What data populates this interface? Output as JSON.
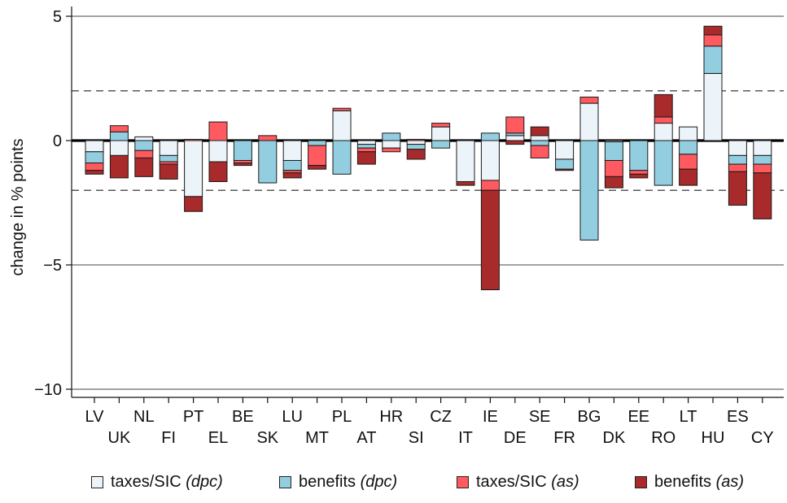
{
  "chart_data": {
    "type": "bar",
    "stacked": true,
    "ylabel": "change in % points",
    "xlabel": "",
    "ylim": [
      -10.5,
      5.5
    ],
    "yticks": [
      5,
      0,
      -5,
      -10
    ],
    "ytick_labels": [
      "5",
      "0",
      "−5",
      "−10"
    ],
    "reference_lines": {
      "solid": [
        0
      ],
      "dashed": [
        2,
        -2
      ]
    },
    "categories": [
      "LV",
      "UK",
      "NL",
      "FI",
      "PT",
      "EL",
      "BE",
      "SK",
      "LU",
      "MT",
      "PL",
      "AT",
      "HR",
      "SI",
      "CZ",
      "IT",
      "IE",
      "DE",
      "SE",
      "FR",
      "BG",
      "DK",
      "EE",
      "RO",
      "LT",
      "HU",
      "ES",
      "CY"
    ],
    "series": [
      {
        "name": "taxes/SIC",
        "name_suffix": "(dpc)",
        "color": "#ecf3f9",
        "values": [
          -0.45,
          -0.6,
          0.15,
          -0.6,
          -2.25,
          -0.85,
          0,
          0,
          -0.8,
          0,
          1.2,
          -0.15,
          -0.3,
          -0.15,
          0.55,
          -1.65,
          -1.6,
          0.2,
          0.2,
          -0.75,
          1.5,
          -0.05,
          0,
          0.7,
          0.55,
          2.7,
          -0.6,
          -0.6
        ]
      },
      {
        "name": "benefits",
        "name_suffix": "(dpc)",
        "color": "#93cee0",
        "values": [
          -0.45,
          0.35,
          -0.4,
          -0.25,
          0,
          0,
          -0.8,
          -1.7,
          -0.4,
          -0.2,
          -1.35,
          -0.15,
          0.3,
          -0.2,
          -0.3,
          0,
          0.3,
          0.1,
          -0.2,
          -0.4,
          -4,
          -0.75,
          -1.2,
          -1.8,
          -0.55,
          1.1,
          -0.35,
          -0.35
        ]
      },
      {
        "name": "taxes/SIC",
        "name_suffix": "(as)",
        "color": "#ff5a5f",
        "values": [
          -0.3,
          0.25,
          -0.3,
          -0.1,
          0.05,
          0.75,
          -0.1,
          0.2,
          -0.1,
          -0.8,
          0.1,
          -0.15,
          -0.15,
          0.05,
          0.15,
          0,
          -0.4,
          0.65,
          -0.5,
          0,
          0.25,
          -0.65,
          -0.15,
          0.25,
          -0.6,
          0.45,
          -0.3,
          -0.35
        ]
      },
      {
        "name": "benefits",
        "name_suffix": "(as)",
        "color": "#a82a2a",
        "values": [
          -0.15,
          -0.9,
          -0.75,
          -0.6,
          -0.6,
          -0.8,
          -0.1,
          0,
          -0.2,
          -0.15,
          0,
          -0.5,
          0,
          -0.4,
          0,
          -0.15,
          -4,
          -0.15,
          0.35,
          -0.05,
          0,
          -0.45,
          -0.15,
          0.9,
          -0.65,
          0.35,
          -1.35,
          -1.85
        ]
      }
    ],
    "legend_position": "bottom"
  }
}
